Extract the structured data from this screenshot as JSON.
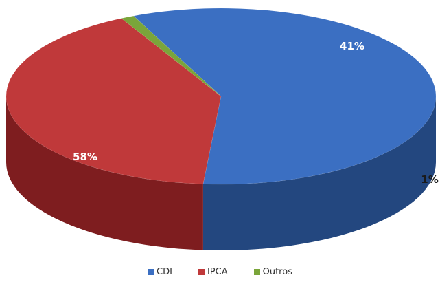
{
  "chart_data": {
    "type": "pie",
    "style": "3d",
    "title": "",
    "legend_position": "bottom",
    "slices": [
      {
        "name": "CDI",
        "value": 58,
        "label": "58%",
        "color": "#3b6fc2",
        "side_color": "#23477f"
      },
      {
        "name": "IPCA",
        "value": 41,
        "label": "41%",
        "color": "#c0393a",
        "side_color": "#7e1d1f"
      },
      {
        "name": "Outros",
        "value": 1,
        "label": "1%",
        "color": "#7aa53a",
        "side_color": "#4d6e1e"
      }
    ]
  }
}
